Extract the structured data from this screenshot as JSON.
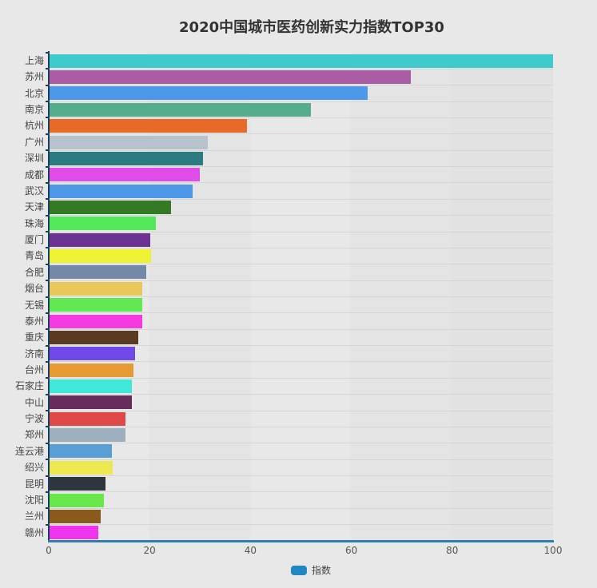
{
  "chart_data": {
    "type": "bar",
    "orientation": "horizontal",
    "title": "2020中国城市医药创新实力指数TOP30",
    "xlabel": "",
    "ylabel": "",
    "xlim": [
      0,
      100
    ],
    "x_ticks": [
      "0",
      "20",
      "40",
      "60",
      "80",
      "100"
    ],
    "grid": true,
    "legend_position": "bottom",
    "series": [
      {
        "name": "指数",
        "legend_color": "#1f87c1",
        "values": [
          100,
          71.8,
          63.3,
          52.0,
          39.3,
          31.5,
          30.6,
          29.9,
          28.5,
          24.2,
          21.2,
          20.2,
          20.3,
          19.3,
          18.6,
          18.6,
          18.5,
          17.7,
          17.1,
          16.8,
          16.5,
          16.5,
          15.2,
          15.2,
          12.5,
          12.7,
          11.3,
          10.9,
          10.3,
          9.8
        ]
      }
    ],
    "categories": [
      "上海",
      "苏州",
      "北京",
      "南京",
      "杭州",
      "广州",
      "深圳",
      "成都",
      "武汉",
      "天津",
      "珠海",
      "厦门",
      "青岛",
      "合肥",
      "烟台",
      "无锡",
      "泰州",
      "重庆",
      "济南",
      "台州",
      "石家庄",
      "中山",
      "宁波",
      "郑州",
      "连云港",
      "绍兴",
      "昆明",
      "沈阳",
      "兰州",
      "赣州"
    ],
    "bar_colors": [
      "#3fcbcb",
      "#a95ba3",
      "#4c97e8",
      "#54ad8c",
      "#e86a28",
      "#b8c2cc",
      "#2b7b80",
      "#e04ce8",
      "#4c97e8",
      "#347a24",
      "#52e85a",
      "#6a3392",
      "#eef232",
      "#7489a8",
      "#e8c858",
      "#62e852",
      "#f53ae0",
      "#5a3a20",
      "#7048e8",
      "#e89a32",
      "#3fe8d8",
      "#662d5a",
      "#e04848",
      "#9daebf",
      "#5a9fd4",
      "#ede850",
      "#2f353f",
      "#68e84a",
      "#8a5a1c",
      "#ee34ee"
    ]
  },
  "legend": {
    "label": "指数"
  }
}
